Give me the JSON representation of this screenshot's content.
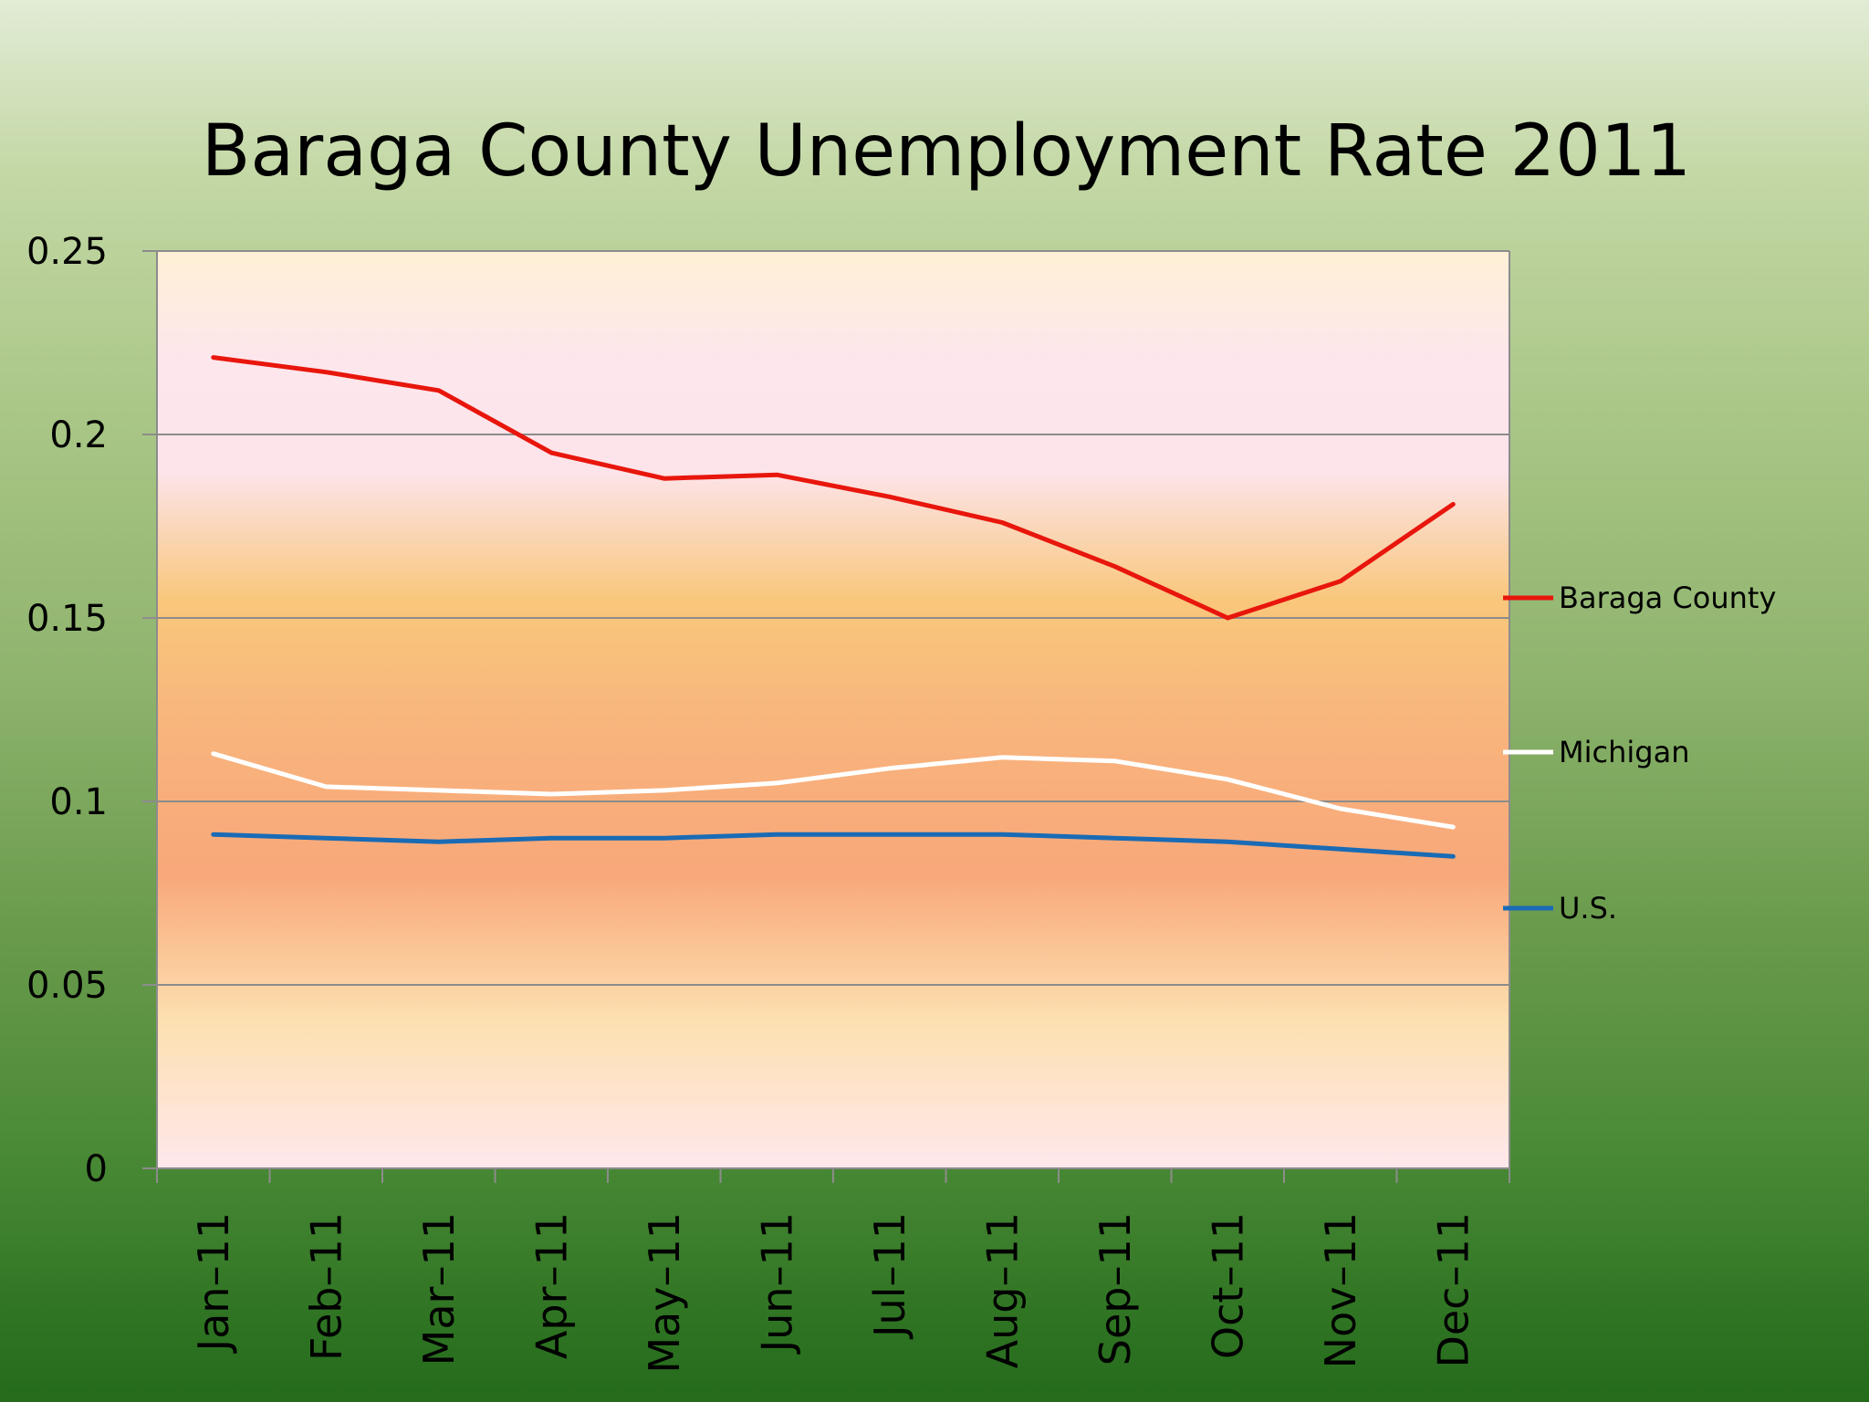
{
  "chart_data": {
    "type": "line",
    "title": "Baraga County Unemployment Rate 2011",
    "xlabel": "",
    "ylabel": "",
    "categories": [
      "Jan-11",
      "Feb-11",
      "Mar-11",
      "Apr-11",
      "May-11",
      "Jun-11",
      "Jul-11",
      "Aug-11",
      "Sep-11",
      "Oct-11",
      "Nov-11",
      "Dec-11"
    ],
    "ylim": [
      0,
      0.25
    ],
    "yticks": [
      "0",
      "0.05",
      "0.1",
      "0.15",
      "0.2",
      "0.25"
    ],
    "grid": true,
    "legend_position": "right",
    "series": [
      {
        "name": "Baraga County",
        "color": "#e8160c",
        "values": [
          0.221,
          0.217,
          0.212,
          0.195,
          0.188,
          0.189,
          0.183,
          0.176,
          0.164,
          0.15,
          0.16,
          0.181
        ]
      },
      {
        "name": "Michigan",
        "color": "#ffffff",
        "values": [
          0.113,
          0.104,
          0.103,
          0.102,
          0.103,
          0.105,
          0.109,
          0.112,
          0.111,
          0.106,
          0.098,
          0.093
        ]
      },
      {
        "name": "U.S.",
        "color": "#1a6bb5",
        "values": [
          0.091,
          0.09,
          0.089,
          0.09,
          0.09,
          0.091,
          0.091,
          0.091,
          0.09,
          0.089,
          0.087,
          0.085
        ]
      }
    ]
  }
}
